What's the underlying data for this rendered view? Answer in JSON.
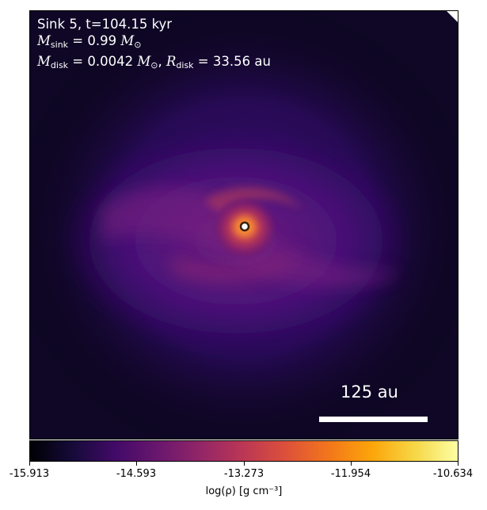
{
  "annotation": {
    "line1": "Sink 5, t=104.15 kyr",
    "mass_sink_symbol": "M",
    "mass_sink_sub": "sink",
    "mass_sink_value": " = 0.99 ",
    "mass_sink_unit": "M",
    "mass_sink_unit_sub": "⊙",
    "mass_disk_symbol": "M",
    "mass_disk_sub": "disk",
    "mass_disk_value": " = 0.0042 ",
    "mass_disk_unit": "M",
    "mass_disk_unit_sub": "⊙",
    "sep": ", ",
    "radius_symbol": "R",
    "radius_sub": "disk",
    "radius_value": " = 33.56 au"
  },
  "scale_bar": {
    "label": "125 au"
  },
  "colorbar": {
    "ticks": [
      "-15.913",
      "-14.593",
      "-13.273",
      "-11.954",
      "-10.634"
    ],
    "label": "log(ρ) [g cm⁻³]",
    "colormap": "inferno"
  }
}
